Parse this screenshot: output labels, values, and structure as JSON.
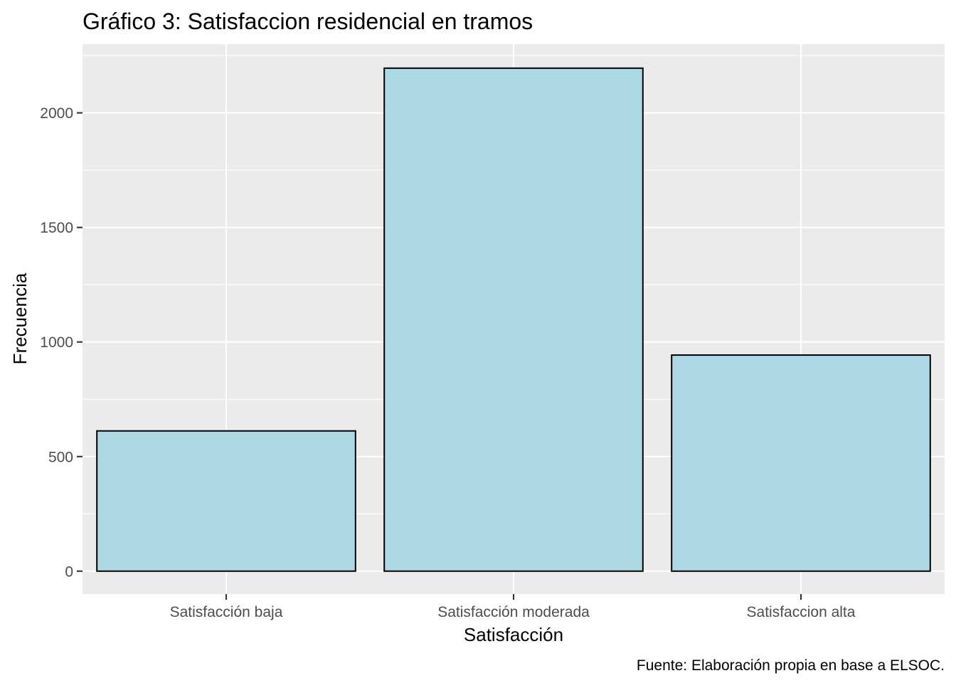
{
  "chart_data": {
    "type": "bar",
    "title": "Gráfico 3: Satisfaccion residencial en tramos",
    "xlabel": "Satisfacción",
    "ylabel": "Frecuencia",
    "caption": "Fuente: Elaboración propia en base a ELSOC.",
    "categories": [
      "Satisfacción baja",
      "Satisfacción moderada",
      "Satisfaccion alta"
    ],
    "values": [
      612,
      2195,
      943
    ],
    "ylim": [
      -100,
      2300
    ],
    "yticks": [
      0,
      500,
      1000,
      1500,
      2000
    ],
    "ytick_labels": [
      "0",
      "500",
      "1000",
      "1500",
      "2000"
    ],
    "grid": true,
    "legend": "none",
    "colors": {
      "bar_fill": "#ADD8E6",
      "bar_stroke": "#000000",
      "panel_background": "#EBEBEB",
      "grid": "#FFFFFF"
    }
  }
}
